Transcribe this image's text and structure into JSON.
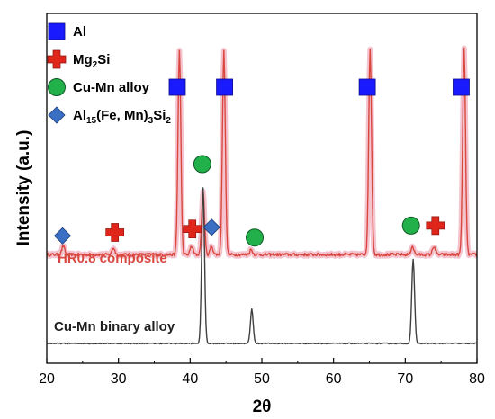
{
  "chart_data": {
    "type": "line",
    "xlabel": "2θ",
    "ylabel": "Intensity (a.u.)",
    "xlim": [
      20,
      80
    ],
    "xticks": [
      "20",
      "30",
      "40",
      "50",
      "60",
      "70",
      "80"
    ],
    "yticks": "none",
    "grid": false,
    "legend_position": "top-left",
    "legend": [
      {
        "key": "al",
        "marker": "square",
        "color": "#1a1aff",
        "label": "Al"
      },
      {
        "key": "mg2si",
        "marker": "plus",
        "color": "#e0261b",
        "label_main": "Mg",
        "label_sub": "2",
        "label_end": "Si"
      },
      {
        "key": "cumn",
        "marker": "circle",
        "color": "#22b04b",
        "label": "Cu-Mn alloy"
      },
      {
        "key": "alfemnsi",
        "marker": "diamond",
        "color": "#3a6fc4",
        "label_a": "Al",
        "label_a_sub": "15",
        "label_b": "(Fe, Mn)",
        "label_b_sub": "3",
        "label_c": "Si",
        "label_c_sub": "2"
      }
    ],
    "series": [
      {
        "name": "HR0.8 composite",
        "color": "#d9473f",
        "baseline": 0.52,
        "peaks": [
          {
            "x": 22.3,
            "h": 0.05
          },
          {
            "x": 29.3,
            "h": 0.04
          },
          {
            "x": 38.5,
            "h": 1.2
          },
          {
            "x": 40.2,
            "h": 0.05
          },
          {
            "x": 41.8,
            "h": 0.37
          },
          {
            "x": 43.0,
            "h": 0.05
          },
          {
            "x": 44.7,
            "h": 1.2
          },
          {
            "x": 48.5,
            "h": 0.03
          },
          {
            "x": 65.1,
            "h": 1.2
          },
          {
            "x": 71.0,
            "h": 0.05
          },
          {
            "x": 74.0,
            "h": 0.05
          },
          {
            "x": 78.2,
            "h": 1.2
          }
        ]
      },
      {
        "name": "Cu-Mn binary alloy",
        "color": "#404040",
        "baseline": 0.0,
        "peaks": [
          {
            "x": 41.8,
            "h": 0.91
          },
          {
            "x": 48.6,
            "h": 0.2
          },
          {
            "x": 71.1,
            "h": 0.49
          }
        ]
      }
    ],
    "markers": [
      {
        "type": "al",
        "x": 38.2,
        "y": 1.5
      },
      {
        "type": "al",
        "x": 44.8,
        "y": 1.5
      },
      {
        "type": "al",
        "x": 64.7,
        "y": 1.5
      },
      {
        "type": "al",
        "x": 77.8,
        "y": 1.5
      },
      {
        "type": "mg2si",
        "x": 29.5,
        "y": 0.65
      },
      {
        "type": "mg2si",
        "x": 40.3,
        "y": 0.67
      },
      {
        "type": "mg2si",
        "x": 74.2,
        "y": 0.69
      },
      {
        "type": "cumn",
        "x": 41.7,
        "y": 1.05
      },
      {
        "type": "cumn",
        "x": 49.0,
        "y": 0.62
      },
      {
        "type": "cumn",
        "x": 70.8,
        "y": 0.69
      },
      {
        "type": "alfemnsi",
        "x": 22.2,
        "y": 0.63
      },
      {
        "type": "alfemnsi",
        "x": 43.0,
        "y": 0.68
      }
    ]
  }
}
